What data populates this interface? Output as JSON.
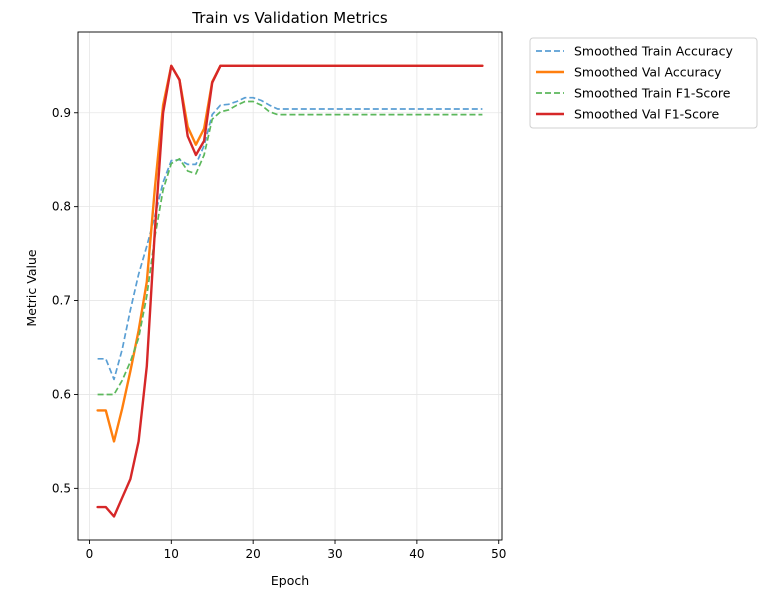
{
  "chart_data": {
    "type": "line",
    "title": "Train vs Validation Metrics",
    "xlabel": "Epoch",
    "ylabel": "Metric Value",
    "xlim": [
      -1.4,
      50.4
    ],
    "ylim": [
      0.445,
      0.986
    ],
    "xticks": [
      0,
      10,
      20,
      30,
      40,
      50
    ],
    "yticks": [
      0.5,
      0.6,
      0.7,
      0.8,
      0.9
    ],
    "grid": true,
    "legend_position": "outside-top-right",
    "series": [
      {
        "name": "Smoothed Train Accuracy",
        "color": "#5a9fd4",
        "dashed": true,
        "points": [
          [
            1,
            0.638
          ],
          [
            2,
            0.638
          ],
          [
            3,
            0.616
          ],
          [
            4,
            0.648
          ],
          [
            5,
            0.69
          ],
          [
            6,
            0.728
          ],
          [
            7,
            0.758
          ],
          [
            8,
            0.79
          ],
          [
            9,
            0.826
          ],
          [
            10,
            0.849
          ],
          [
            11,
            0.85
          ],
          [
            12,
            0.845
          ],
          [
            13,
            0.845
          ],
          [
            14,
            0.865
          ],
          [
            15,
            0.898
          ],
          [
            16,
            0.908
          ],
          [
            17,
            0.909
          ],
          [
            18,
            0.912
          ],
          [
            19,
            0.916
          ],
          [
            20,
            0.916
          ],
          [
            21,
            0.913
          ],
          [
            22,
            0.908
          ],
          [
            23,
            0.904
          ],
          [
            30,
            0.904
          ],
          [
            40,
            0.904
          ],
          [
            48,
            0.904
          ]
        ]
      },
      {
        "name": "Smoothed Val Accuracy",
        "color": "#ff7f0e",
        "dashed": false,
        "points": [
          [
            1,
            0.583
          ],
          [
            2,
            0.583
          ],
          [
            3,
            0.55
          ],
          [
            4,
            0.585
          ],
          [
            5,
            0.625
          ],
          [
            6,
            0.668
          ],
          [
            7,
            0.72
          ],
          [
            8,
            0.82
          ],
          [
            9,
            0.908
          ],
          [
            10,
            0.95
          ],
          [
            11,
            0.935
          ],
          [
            12,
            0.885
          ],
          [
            13,
            0.866
          ],
          [
            14,
            0.883
          ],
          [
            15,
            0.933
          ],
          [
            16,
            0.95
          ],
          [
            30,
            0.95
          ],
          [
            48,
            0.95
          ]
        ]
      },
      {
        "name": "Smoothed Train F1-Score",
        "color": "#5cb85c",
        "dashed": true,
        "points": [
          [
            1,
            0.6
          ],
          [
            2,
            0.6
          ],
          [
            3,
            0.6
          ],
          [
            4,
            0.615
          ],
          [
            5,
            0.635
          ],
          [
            6,
            0.66
          ],
          [
            7,
            0.705
          ],
          [
            8,
            0.768
          ],
          [
            9,
            0.818
          ],
          [
            10,
            0.846
          ],
          [
            11,
            0.851
          ],
          [
            12,
            0.838
          ],
          [
            13,
            0.835
          ],
          [
            14,
            0.855
          ],
          [
            15,
            0.893
          ],
          [
            16,
            0.901
          ],
          [
            17,
            0.903
          ],
          [
            18,
            0.908
          ],
          [
            19,
            0.912
          ],
          [
            20,
            0.912
          ],
          [
            21,
            0.908
          ],
          [
            22,
            0.901
          ],
          [
            23,
            0.898
          ],
          [
            30,
            0.898
          ],
          [
            40,
            0.898
          ],
          [
            48,
            0.898
          ]
        ]
      },
      {
        "name": "Smoothed Val F1-Score",
        "color": "#d62728",
        "dashed": false,
        "points": [
          [
            1,
            0.48
          ],
          [
            2,
            0.48
          ],
          [
            3,
            0.47
          ],
          [
            4,
            0.49
          ],
          [
            5,
            0.51
          ],
          [
            6,
            0.55
          ],
          [
            7,
            0.63
          ],
          [
            8,
            0.775
          ],
          [
            9,
            0.9
          ],
          [
            10,
            0.95
          ],
          [
            11,
            0.935
          ],
          [
            12,
            0.875
          ],
          [
            13,
            0.855
          ],
          [
            14,
            0.87
          ],
          [
            15,
            0.932
          ],
          [
            16,
            0.95
          ],
          [
            30,
            0.95
          ],
          [
            48,
            0.95
          ]
        ]
      }
    ]
  }
}
